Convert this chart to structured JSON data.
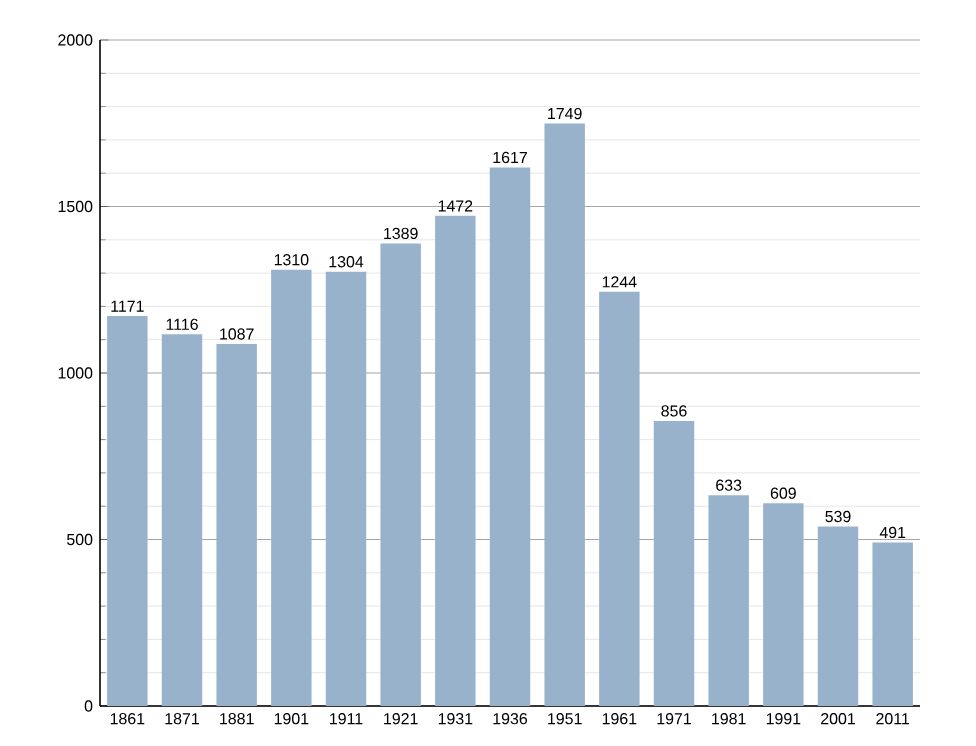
{
  "chart_data": {
    "type": "bar",
    "categories": [
      "1861",
      "1871",
      "1881",
      "1901",
      "1911",
      "1921",
      "1931",
      "1936",
      "1951",
      "1961",
      "1971",
      "1981",
      "1991",
      "2001",
      "2011"
    ],
    "values": [
      1171,
      1116,
      1087,
      1310,
      1304,
      1389,
      1472,
      1617,
      1749,
      1244,
      856,
      633,
      609,
      539,
      491
    ],
    "color": "#98b2cc",
    "ylim": [
      0,
      2000
    ],
    "yticks": [
      0,
      500,
      1000,
      1500,
      2000
    ],
    "grid": "y",
    "data_labels": true
  }
}
